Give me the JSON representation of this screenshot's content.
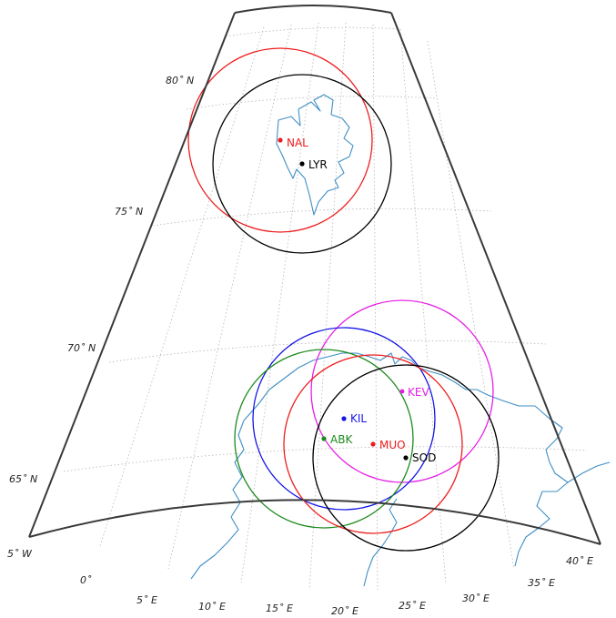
{
  "lat_labels": [
    {
      "text": "80˚ N"
    },
    {
      "text": "75˚ N"
    },
    {
      "text": "70˚ N"
    },
    {
      "text": "65˚ N"
    }
  ],
  "lon_labels": [
    {
      "text": "5˚ W"
    },
    {
      "text": "0˚"
    },
    {
      "text": "5˚ E"
    },
    {
      "text": "10˚ E"
    },
    {
      "text": "15˚ E"
    },
    {
      "text": "20˚ E"
    },
    {
      "text": "25˚ E"
    },
    {
      "text": "30˚ E"
    },
    {
      "text": "35˚ E"
    },
    {
      "text": "40˚ E"
    }
  ],
  "stations": [
    {
      "code": "NAL",
      "color": "#ee1c1c"
    },
    {
      "code": "LYR",
      "color": "#000000"
    },
    {
      "code": "KEV",
      "color": "#e61ee6"
    },
    {
      "code": "KIL",
      "color": "#1515e6"
    },
    {
      "code": "ABK",
      "color": "#1d8a1d"
    },
    {
      "code": "MUO",
      "color": "#ee1c1c"
    },
    {
      "code": "SOD",
      "color": "#000000"
    }
  ],
  "colors": {
    "coastline": "#3f8fc4",
    "grid": "#b5b5b5",
    "frame": "#3a3a3a"
  }
}
